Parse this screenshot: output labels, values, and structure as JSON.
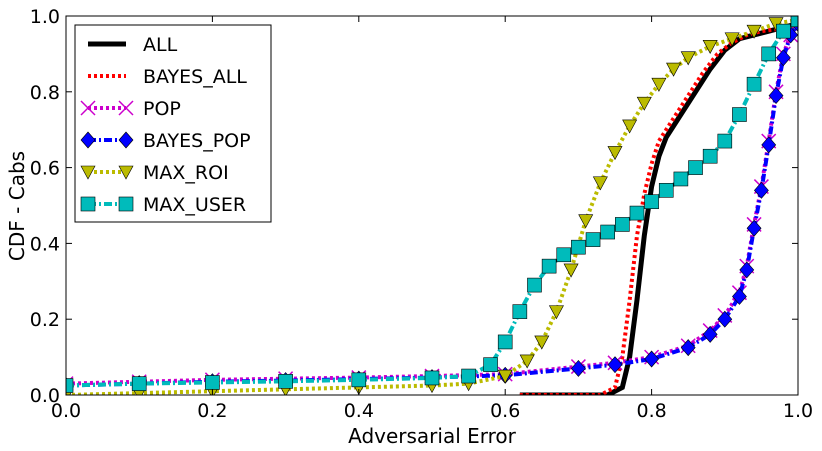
{
  "chart_data": {
    "type": "line",
    "xlabel": "Adversarial Error",
    "ylabel": "CDF - Cabs",
    "xlim": [
      0.0,
      1.0
    ],
    "ylim": [
      0.0,
      1.0
    ],
    "xticks": [
      "0.0",
      "0.2",
      "0.4",
      "0.6",
      "0.8",
      "1.0"
    ],
    "yticks": [
      "0.0",
      "0.2",
      "0.4",
      "0.6",
      "0.8",
      "1.0"
    ],
    "grid": false,
    "legend_position": "top-left",
    "series": [
      {
        "name": "ALL",
        "color": "#000000",
        "style": "solid",
        "marker": "none",
        "points": [
          [
            0.62,
            0.0
          ],
          [
            0.7,
            0.0
          ],
          [
            0.74,
            0.0
          ],
          [
            0.76,
            0.02
          ],
          [
            0.77,
            0.1
          ],
          [
            0.78,
            0.25
          ],
          [
            0.79,
            0.42
          ],
          [
            0.8,
            0.55
          ],
          [
            0.81,
            0.63
          ],
          [
            0.82,
            0.68
          ],
          [
            0.84,
            0.74
          ],
          [
            0.86,
            0.8
          ],
          [
            0.88,
            0.86
          ],
          [
            0.9,
            0.91
          ],
          [
            0.92,
            0.94
          ],
          [
            0.94,
            0.95
          ],
          [
            0.96,
            0.96
          ],
          [
            0.98,
            0.97
          ],
          [
            1.0,
            0.98
          ]
        ]
      },
      {
        "name": "BAYES_ALL",
        "color": "#ff0000",
        "style": "dotted",
        "marker": "none",
        "points": [
          [
            0.62,
            0.0
          ],
          [
            0.7,
            0.0
          ],
          [
            0.73,
            0.0
          ],
          [
            0.75,
            0.02
          ],
          [
            0.76,
            0.1
          ],
          [
            0.77,
            0.25
          ],
          [
            0.78,
            0.42
          ],
          [
            0.79,
            0.53
          ],
          [
            0.8,
            0.61
          ],
          [
            0.81,
            0.67
          ],
          [
            0.83,
            0.73
          ],
          [
            0.85,
            0.79
          ],
          [
            0.87,
            0.85
          ],
          [
            0.89,
            0.9
          ],
          [
            0.91,
            0.93
          ],
          [
            0.93,
            0.95
          ],
          [
            0.95,
            0.96
          ],
          [
            0.97,
            0.965
          ],
          [
            0.99,
            0.97
          ],
          [
            1.0,
            0.975
          ]
        ]
      },
      {
        "name": "POP",
        "color": "#cc00cc",
        "style": "dotted",
        "marker": "x",
        "points": [
          [
            0.0,
            0.03
          ],
          [
            0.1,
            0.035
          ],
          [
            0.2,
            0.04
          ],
          [
            0.3,
            0.043
          ],
          [
            0.4,
            0.046
          ],
          [
            0.5,
            0.05
          ],
          [
            0.6,
            0.055
          ],
          [
            0.7,
            0.075
          ],
          [
            0.75,
            0.085
          ],
          [
            0.8,
            0.1
          ],
          [
            0.85,
            0.13
          ],
          [
            0.88,
            0.17
          ],
          [
            0.9,
            0.21
          ],
          [
            0.92,
            0.27
          ],
          [
            0.93,
            0.34
          ],
          [
            0.94,
            0.45
          ],
          [
            0.95,
            0.55
          ],
          [
            0.96,
            0.67
          ],
          [
            0.97,
            0.8
          ],
          [
            0.98,
            0.9
          ],
          [
            0.99,
            0.95
          ],
          [
            1.0,
            0.98
          ]
        ]
      },
      {
        "name": "BAYES_POP",
        "color": "#0000ff",
        "style": "dashdot",
        "marker": "diamond",
        "points": [
          [
            0.0,
            0.025
          ],
          [
            0.1,
            0.03
          ],
          [
            0.2,
            0.035
          ],
          [
            0.3,
            0.038
          ],
          [
            0.4,
            0.042
          ],
          [
            0.5,
            0.046
          ],
          [
            0.6,
            0.052
          ],
          [
            0.7,
            0.07
          ],
          [
            0.75,
            0.08
          ],
          [
            0.8,
            0.095
          ],
          [
            0.85,
            0.125
          ],
          [
            0.88,
            0.16
          ],
          [
            0.9,
            0.2
          ],
          [
            0.92,
            0.26
          ],
          [
            0.93,
            0.33
          ],
          [
            0.94,
            0.44
          ],
          [
            0.95,
            0.54
          ],
          [
            0.96,
            0.66
          ],
          [
            0.97,
            0.79
          ],
          [
            0.98,
            0.89
          ],
          [
            0.99,
            0.95
          ],
          [
            1.0,
            0.98
          ]
        ]
      },
      {
        "name": "MAX_ROI",
        "color": "#bbbb00",
        "style": "dotted",
        "marker": "triangle-down",
        "points": [
          [
            0.0,
            0.0
          ],
          [
            0.1,
            0.005
          ],
          [
            0.2,
            0.01
          ],
          [
            0.3,
            0.015
          ],
          [
            0.4,
            0.02
          ],
          [
            0.5,
            0.025
          ],
          [
            0.55,
            0.03
          ],
          [
            0.6,
            0.05
          ],
          [
            0.63,
            0.09
          ],
          [
            0.65,
            0.14
          ],
          [
            0.67,
            0.22
          ],
          [
            0.69,
            0.33
          ],
          [
            0.71,
            0.46
          ],
          [
            0.73,
            0.56
          ],
          [
            0.75,
            0.64
          ],
          [
            0.77,
            0.71
          ],
          [
            0.79,
            0.77
          ],
          [
            0.81,
            0.82
          ],
          [
            0.83,
            0.86
          ],
          [
            0.85,
            0.89
          ],
          [
            0.88,
            0.92
          ],
          [
            0.91,
            0.94
          ],
          [
            0.94,
            0.96
          ],
          [
            0.97,
            0.98
          ],
          [
            1.0,
            0.99
          ]
        ]
      },
      {
        "name": "MAX_USER",
        "color": "#00bbbb",
        "style": "dashdot",
        "marker": "square",
        "points": [
          [
            0.0,
            0.025
          ],
          [
            0.1,
            0.03
          ],
          [
            0.2,
            0.033
          ],
          [
            0.3,
            0.036
          ],
          [
            0.4,
            0.04
          ],
          [
            0.5,
            0.045
          ],
          [
            0.55,
            0.05
          ],
          [
            0.58,
            0.08
          ],
          [
            0.6,
            0.14
          ],
          [
            0.62,
            0.22
          ],
          [
            0.64,
            0.29
          ],
          [
            0.66,
            0.34
          ],
          [
            0.68,
            0.37
          ],
          [
            0.7,
            0.39
          ],
          [
            0.72,
            0.41
          ],
          [
            0.74,
            0.43
          ],
          [
            0.76,
            0.45
          ],
          [
            0.78,
            0.48
          ],
          [
            0.8,
            0.51
          ],
          [
            0.82,
            0.54
          ],
          [
            0.84,
            0.57
          ],
          [
            0.86,
            0.6
          ],
          [
            0.88,
            0.63
          ],
          [
            0.9,
            0.67
          ],
          [
            0.92,
            0.74
          ],
          [
            0.94,
            0.82
          ],
          [
            0.96,
            0.9
          ],
          [
            0.98,
            0.96
          ],
          [
            1.0,
            0.99
          ]
        ]
      }
    ]
  }
}
